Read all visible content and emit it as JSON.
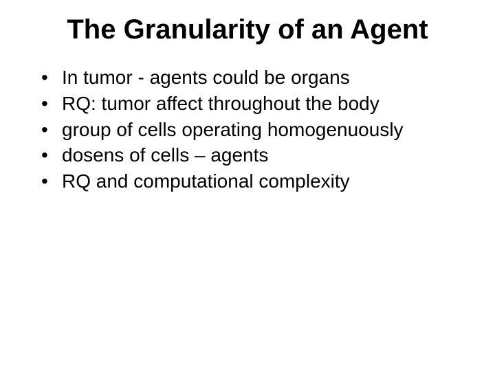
{
  "title": "The Granularity of an Agent",
  "title_fontsize": 40,
  "title_fontweight": 700,
  "title_color": "#000000",
  "body_fontsize": 28,
  "body_color": "#000000",
  "background_color": "#ffffff",
  "bullets": [
    "In tumor - agents could be organs",
    "RQ: tumor affect throughout the body",
    "group of cells operating homogenuously",
    "dosens of cells – agents",
    "RQ and computational complexity"
  ]
}
